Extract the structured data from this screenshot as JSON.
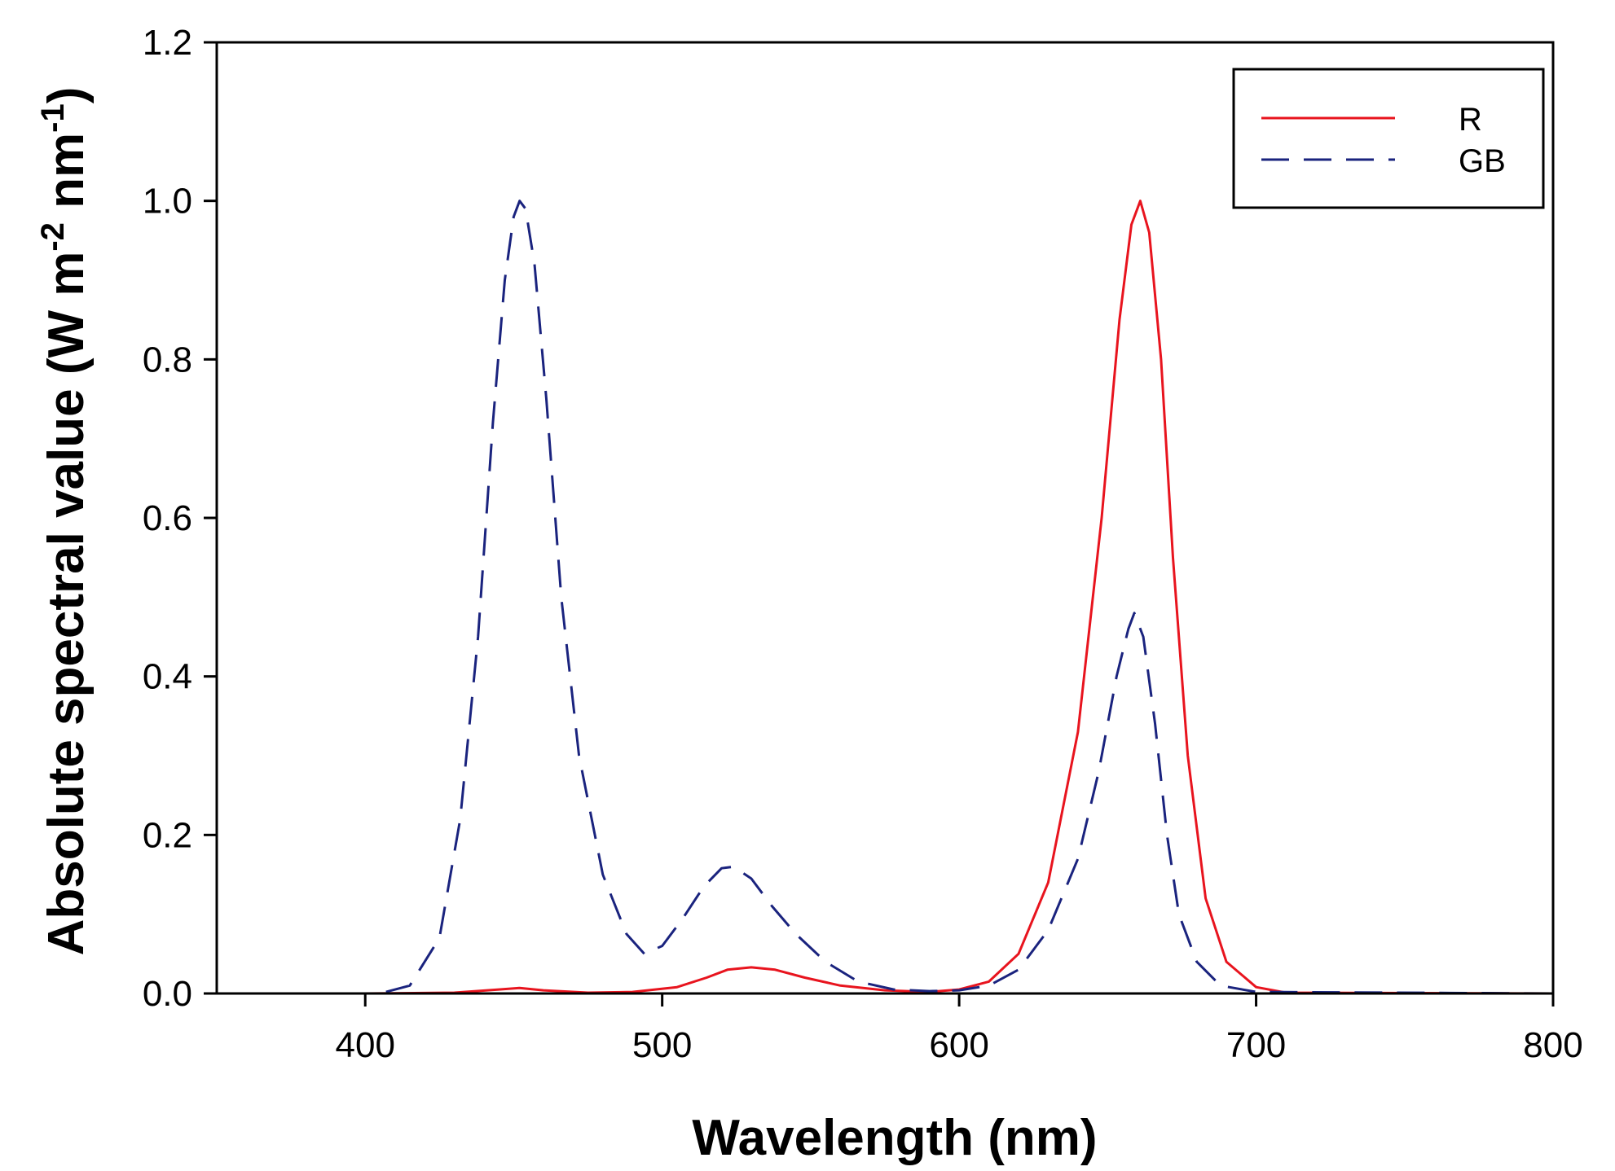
{
  "chart_data": {
    "type": "line",
    "title": "",
    "xlabel": "Wavelength (nm)",
    "ylabel": {
      "prefix": "Absolute spectral value (W m",
      "exp1": "-2",
      "mid": " nm",
      "exp2": "-1",
      "suffix": ")"
    },
    "xlim": [
      350,
      800
    ],
    "ylim": [
      0,
      1.2
    ],
    "xticks": [
      400,
      500,
      600,
      700,
      800
    ],
    "xtick_labels": [
      "400",
      "500",
      "600",
      "700",
      "800"
    ],
    "yticks": [
      0,
      0.2,
      0.4,
      0.6,
      0.8,
      1.0,
      1.2
    ],
    "ytick_labels": [
      "0.0",
      "0.2",
      "0.4",
      "0.6",
      "0.8",
      "1.0",
      "1.2"
    ],
    "grid": false,
    "legend_position": "top-right",
    "series": [
      {
        "name": "R",
        "color": "#e8141e",
        "style": "solid",
        "x": [
          350,
          400,
          430,
          445,
          452,
          460,
          475,
          490,
          505,
          515,
          522,
          530,
          538,
          548,
          560,
          575,
          590,
          600,
          610,
          620,
          630,
          640,
          648,
          654,
          658,
          661,
          664,
          668,
          672,
          677,
          683,
          690,
          700,
          710,
          800
        ],
        "y": [
          0,
          0,
          0.001,
          0.005,
          0.007,
          0.004,
          0.001,
          0.002,
          0.008,
          0.02,
          0.03,
          0.033,
          0.03,
          0.02,
          0.01,
          0.004,
          0.002,
          0.005,
          0.015,
          0.05,
          0.14,
          0.33,
          0.6,
          0.85,
          0.97,
          1.0,
          0.96,
          0.8,
          0.55,
          0.3,
          0.12,
          0.04,
          0.008,
          0.001,
          0
        ]
      },
      {
        "name": "GB",
        "color": "#1a237e",
        "style": "dashed",
        "x": [
          350,
          405,
          415,
          425,
          432,
          438,
          443,
          447,
          450,
          452,
          454,
          457,
          461,
          466,
          472,
          480,
          488,
          494,
          500,
          507,
          514,
          520,
          524,
          530,
          537,
          545,
          555,
          566,
          578,
          590,
          600,
          610,
          620,
          630,
          640,
          647,
          653,
          657,
          659,
          662,
          666,
          670,
          674,
          680,
          688,
          700,
          800
        ],
        "y": [
          0,
          0,
          0.01,
          0.07,
          0.22,
          0.45,
          0.72,
          0.9,
          0.98,
          1.0,
          0.99,
          0.92,
          0.75,
          0.5,
          0.3,
          0.15,
          0.075,
          0.05,
          0.06,
          0.095,
          0.135,
          0.158,
          0.16,
          0.145,
          0.11,
          0.075,
          0.04,
          0.015,
          0.005,
          0.003,
          0.004,
          0.01,
          0.03,
          0.08,
          0.17,
          0.28,
          0.4,
          0.46,
          0.48,
          0.45,
          0.34,
          0.2,
          0.1,
          0.04,
          0.01,
          0.002,
          0
        ]
      }
    ]
  }
}
